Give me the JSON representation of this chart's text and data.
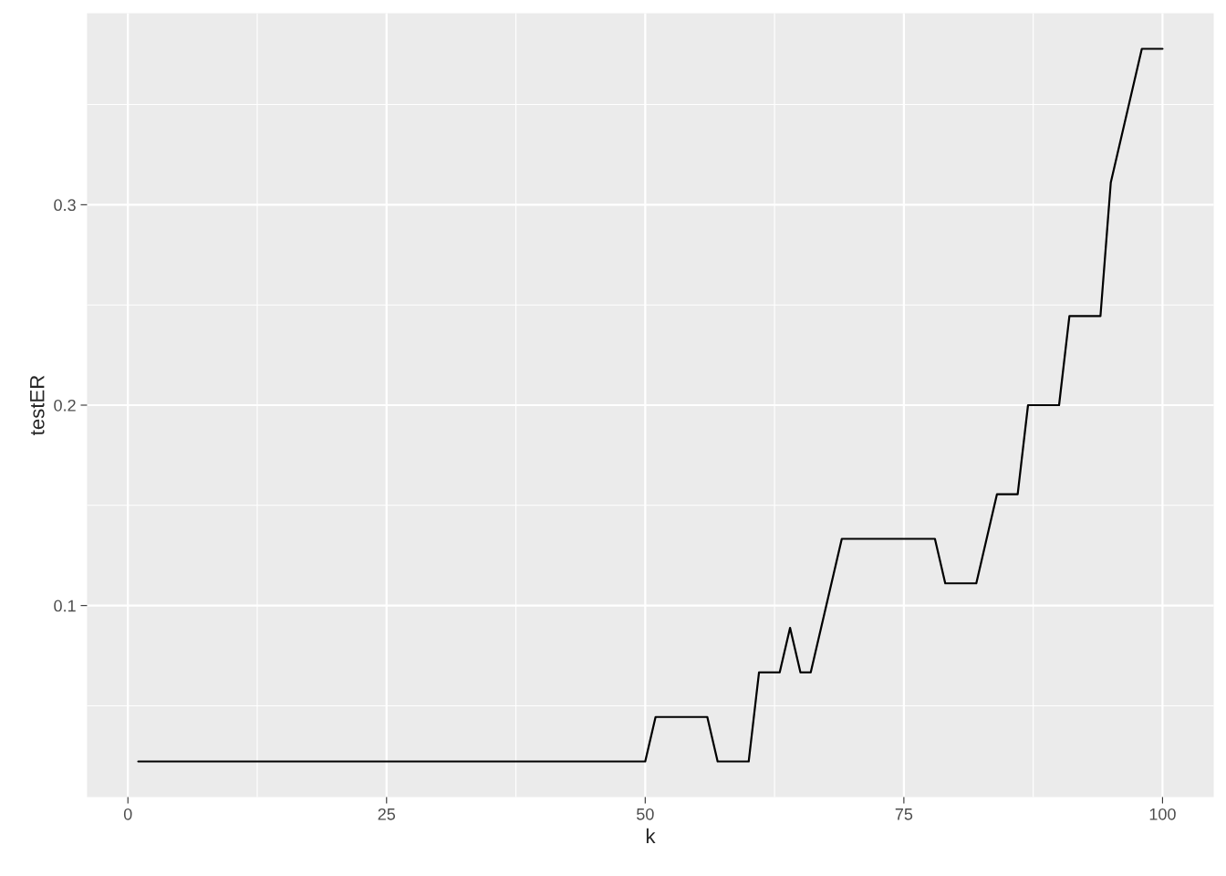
{
  "chart_data": {
    "type": "line",
    "xlabel": "k",
    "ylabel": "testER",
    "x": [
      1,
      50,
      51,
      56,
      57,
      60,
      61,
      63,
      64,
      65,
      66,
      69,
      78,
      79,
      82,
      84,
      86,
      87,
      90,
      91,
      94,
      95,
      98,
      100
    ],
    "series": [
      {
        "color": "#000000",
        "values": [
          0.0222,
          0.0222,
          0.0444,
          0.0444,
          0.0222,
          0.0222,
          0.0667,
          0.0667,
          0.0889,
          0.0667,
          0.0667,
          0.1333,
          0.1333,
          0.1111,
          0.1111,
          0.1556,
          0.1556,
          0.2,
          0.2,
          0.2444,
          0.2444,
          0.3111,
          0.3778,
          0.3778
        ]
      }
    ],
    "xlim": [
      -3.95,
      104.95
    ],
    "ylim": [
      0.0044,
      0.3956
    ],
    "xticks": [
      0,
      {
        "value": 12.5,
        "label": null
      },
      25,
      {
        "value": 37.5,
        "label": null
      },
      50,
      {
        "value": 62.5,
        "label": null
      },
      75,
      {
        "value": 87.5,
        "label": null
      },
      100
    ],
    "yticks": [
      {
        "value": 0.05,
        "label": null
      },
      0.1,
      {
        "value": 0.15,
        "label": null
      },
      0.2,
      {
        "value": 0.25,
        "label": null
      },
      0.3,
      {
        "value": 0.35,
        "label": null
      }
    ],
    "grid": true,
    "line_style": "solid"
  }
}
